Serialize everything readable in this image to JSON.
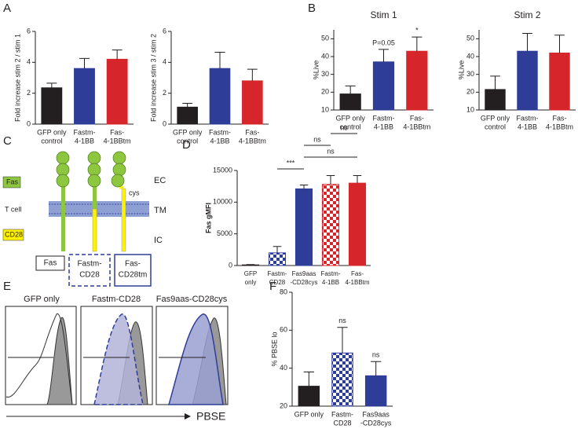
{
  "panel_labels": [
    "A",
    "B",
    "C",
    "D",
    "E",
    "F"
  ],
  "chart_data": [
    {
      "type": "bar",
      "ylabel": "Fold increase stim 2 / stim 1",
      "categories": [
        [
          "GFP only",
          "control"
        ],
        [
          "Fastm-",
          "4-1BB"
        ],
        [
          "Fas-",
          "4-1BBtm"
        ]
      ],
      "values": [
        2.35,
        3.6,
        4.2
      ],
      "errors": [
        0.3,
        0.65,
        0.6
      ],
      "colors": [
        "#231f20",
        "#2e3d98",
        "#d7262b"
      ],
      "patterned": [
        false,
        false,
        false
      ],
      "ylim": [
        0,
        6
      ],
      "yticks": [
        0,
        2,
        4,
        6
      ]
    },
    {
      "type": "bar",
      "ylabel": "Fold increase stim 3 / stim 2",
      "categories": [
        [
          "GFP only",
          "control"
        ],
        [
          "Fastm-",
          "4-1BB"
        ],
        [
          "Fas-",
          "4-1BBtm"
        ]
      ],
      "values": [
        1.1,
        3.6,
        2.8
      ],
      "errors": [
        0.25,
        1.05,
        0.75
      ],
      "colors": [
        "#231f20",
        "#2e3d98",
        "#d7262b"
      ],
      "patterned": [
        false,
        false,
        false
      ],
      "ylim": [
        0,
        6
      ],
      "yticks": [
        0,
        2,
        4,
        6
      ]
    },
    {
      "type": "bar",
      "title": "Stim 1",
      "ylabel": "%Live",
      "categories": [
        [
          "GFP only",
          "control"
        ],
        [
          "Fastm-",
          "4-1BB"
        ],
        [
          "Fas-",
          "4-1BBtm"
        ]
      ],
      "values": [
        19,
        37,
        43
      ],
      "errors": [
        4.5,
        7,
        8
      ],
      "colors": [
        "#231f20",
        "#2e3d98",
        "#d7262b"
      ],
      "patterned": [
        false,
        false,
        false
      ],
      "ylim": [
        10,
        55
      ],
      "yticks": [
        10,
        20,
        30,
        40,
        50
      ],
      "annotations": [
        {
          "text": "P=0.05",
          "from": 1,
          "to": 1
        },
        {
          "text": "*",
          "from": 2,
          "to": 2
        }
      ]
    },
    {
      "type": "bar",
      "title": "Stim 2",
      "ylabel": "%Live",
      "categories": [
        [
          "GFP only",
          "control"
        ],
        [
          "Fastm-",
          "4-1BB"
        ],
        [
          "Fas-",
          "4-1BBtm"
        ]
      ],
      "values": [
        21.5,
        43,
        42
      ],
      "errors": [
        7.5,
        10,
        10
      ],
      "colors": [
        "#231f20",
        "#2e3d98",
        "#d7262b"
      ],
      "patterned": [
        false,
        false,
        false
      ],
      "ylim": [
        10,
        55
      ],
      "yticks": [
        10,
        20,
        30,
        40,
        50
      ]
    },
    {
      "type": "bar",
      "ylabel": "Fas gMFI",
      "categories": [
        [
          "GFP",
          "only"
        ],
        [
          "Fastm-",
          "CD28"
        ],
        [
          "Fas9aas",
          "-CD28cys"
        ],
        [
          "Fastm-",
          "4-1BB"
        ],
        [
          "Fas-",
          "4-1BBtm"
        ]
      ],
      "values": [
        100,
        2000,
        12100,
        12800,
        13000
      ],
      "errors": [
        50,
        1000,
        600,
        1400,
        1200
      ],
      "colors": [
        "#231f20",
        "#2e3d98",
        "#2e3d98",
        "#d7262b",
        "#d7262b"
      ],
      "patterned": [
        false,
        true,
        false,
        true,
        false
      ],
      "ylim": [
        0,
        15000
      ],
      "yticks": [
        0,
        5000,
        10000,
        15000
      ],
      "annotations": [
        {
          "text": "***",
          "from": 1,
          "to": 2
        },
        {
          "text": "ns",
          "from": 2,
          "to": 4
        },
        {
          "text": "ns",
          "from": 2,
          "to": 3
        },
        {
          "text": "ns",
          "from": 3,
          "to": 4
        }
      ]
    },
    {
      "type": "bar",
      "ylabel": "% PBSE lo",
      "categories": [
        [
          "GFP only"
        ],
        [
          "Fastm-",
          "CD28"
        ],
        [
          "Fas9aas",
          "-CD28cys"
        ]
      ],
      "values": [
        30.5,
        48,
        36
      ],
      "errors": [
        7.5,
        13.5,
        7.5
      ],
      "colors": [
        "#231f20",
        "#2e3d98",
        "#2e3d98"
      ],
      "patterned": [
        false,
        true,
        false
      ],
      "ylim": [
        20,
        80
      ],
      "yticks": [
        20,
        40,
        60,
        80
      ],
      "annotations": [
        {
          "text": "ns",
          "from": 1,
          "to": 1
        },
        {
          "text": "ns",
          "from": 2,
          "to": 2
        }
      ]
    }
  ],
  "diagram": {
    "side_labels": [
      "Fas",
      "T cell",
      "CD28"
    ],
    "region_labels": [
      "EC",
      "TM",
      "IC"
    ],
    "cys": "cys",
    "constructs": [
      [
        "Fas"
      ],
      [
        "Fastm-",
        "CD28"
      ],
      [
        "Fas-",
        "CD28tm"
      ]
    ]
  },
  "histograms": {
    "titles": [
      "GFP only",
      "Fastm-CD28",
      "Fas9aas-CD28cys"
    ],
    "xlabel": "PBSE"
  }
}
